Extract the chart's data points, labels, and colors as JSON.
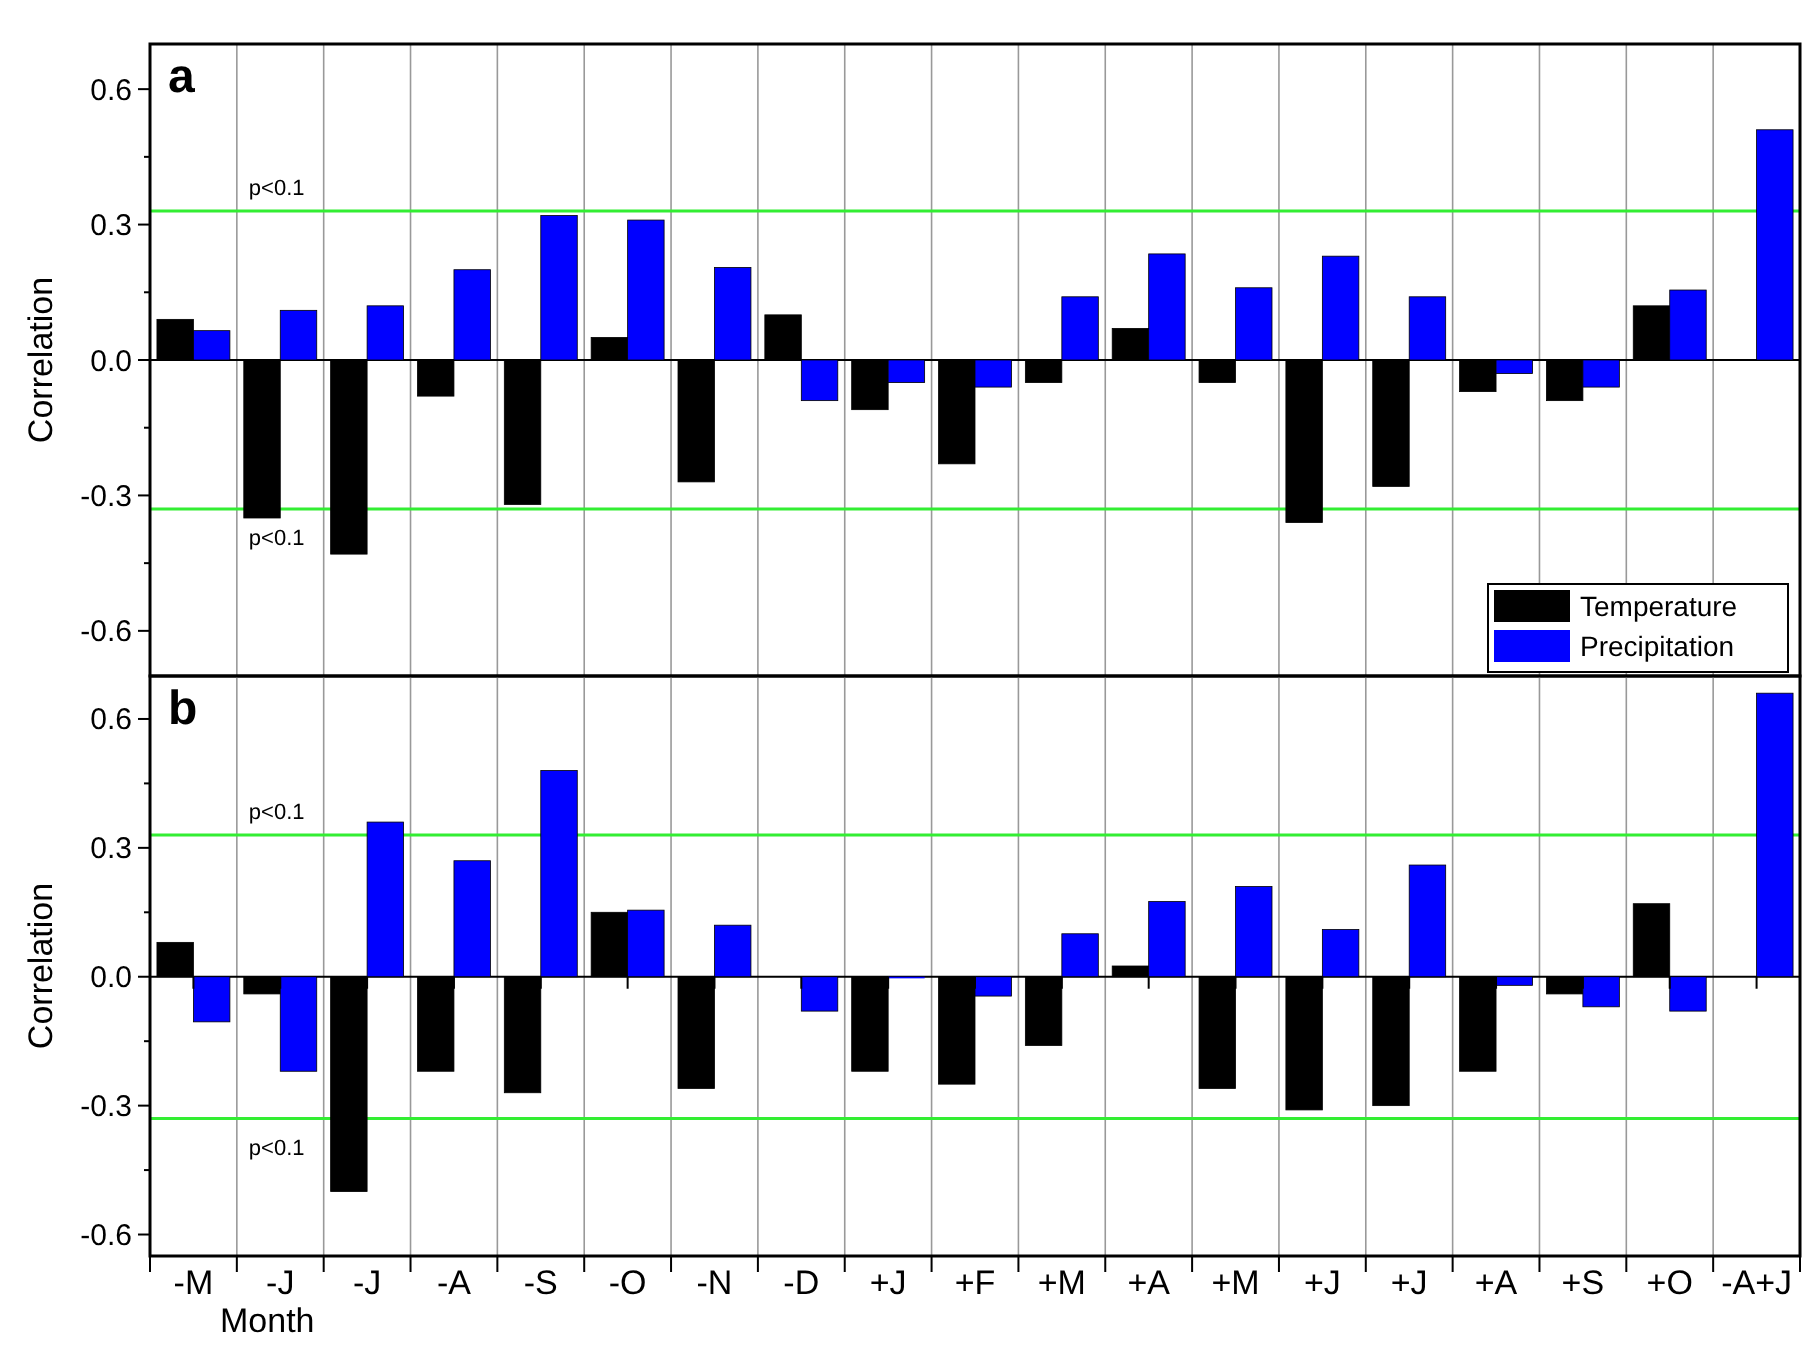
{
  "chart_data": [
    {
      "type": "bar",
      "title": "a",
      "ylabel": "Correlation",
      "categories": [
        null,
        null,
        null,
        null,
        null,
        null,
        null,
        null,
        null,
        null,
        null,
        null,
        null,
        null,
        null,
        null,
        null,
        null,
        null
      ],
      "series": [
        {
          "name": "Temperature",
          "color": "#000000",
          "values": [
            0.09,
            -0.35,
            -0.43,
            -0.08,
            -0.32,
            0.05,
            -0.27,
            0.1,
            -0.11,
            -0.23,
            -0.05,
            0.07,
            -0.05,
            -0.36,
            -0.28,
            -0.07,
            -0.09,
            0.12,
            null
          ]
        },
        {
          "name": "Precipitation",
          "color": "#0000ff",
          "values": [
            0.065,
            0.11,
            0.12,
            0.2,
            0.32,
            0.31,
            0.205,
            -0.09,
            -0.05,
            -0.06,
            0.14,
            0.235,
            0.16,
            0.23,
            0.14,
            -0.03,
            -0.06,
            0.155,
            0.51
          ]
        }
      ],
      "ylim": [
        -0.7,
        0.7
      ],
      "yticks": [
        -0.6,
        {
          "value": -0.45,
          "label": null
        },
        -0.3,
        {
          "value": -0.15,
          "label": null
        },
        {
          "value": 0,
          "label": "0.0"
        },
        {
          "value": 0.15,
          "label": null
        },
        0.3,
        {
          "value": 0.45,
          "label": null
        },
        0.6
      ],
      "ref_lines": [
        {
          "axis": "y",
          "value": 0.33,
          "label": "p<0.1",
          "color": "#33ee33"
        },
        {
          "axis": "y",
          "value": -0.33,
          "label": "p<0.1",
          "color": "#33ee33"
        }
      ],
      "grid": "x",
      "legend": "bottom right",
      "tick_labels": "y"
    },
    {
      "type": "bar",
      "title": "b",
      "xlabel": "Month",
      "ylabel": "Correlation",
      "categories": [
        "-M",
        "-J",
        "-J",
        "-A",
        "-S",
        "-O",
        "-N",
        "-D",
        "+J",
        "+F",
        "+M",
        "+A",
        "+M",
        "+J",
        "+J",
        "+A",
        "+S",
        "+O",
        "-A+J"
      ],
      "series": [
        {
          "color": "#000000",
          "values": [
            0.08,
            -0.04,
            -0.5,
            -0.22,
            -0.27,
            0.15,
            -0.26,
            null,
            -0.22,
            -0.25,
            -0.16,
            0.025,
            -0.26,
            -0.31,
            -0.3,
            -0.22,
            -0.04,
            0.17,
            null
          ]
        },
        {
          "color": "#0000ff",
          "values": [
            -0.105,
            -0.22,
            0.36,
            0.27,
            0.48,
            0.155,
            0.12,
            -0.08,
            0,
            -0.045,
            0.1,
            0.175,
            0.21,
            0.11,
            0.26,
            -0.02,
            -0.07,
            -0.08,
            0.66
          ]
        }
      ],
      "ylim": [
        -0.65,
        0.7
      ],
      "yticks": [
        -0.6,
        {
          "value": -0.45,
          "label": null
        },
        -0.3,
        {
          "value": -0.15,
          "label": null
        },
        {
          "value": 0,
          "label": "0.0"
        },
        {
          "value": 0.15,
          "label": null
        },
        0.3,
        {
          "value": 0.45,
          "label": null
        },
        0.6
      ],
      "ref_lines": [
        {
          "axis": "y",
          "value": 0.33,
          "label": "p<0.1",
          "color": "#33ee33"
        },
        {
          "axis": "y",
          "value": -0.33,
          "label": "p<0.1",
          "color": "#33ee33"
        }
      ],
      "grid": "x"
    }
  ]
}
